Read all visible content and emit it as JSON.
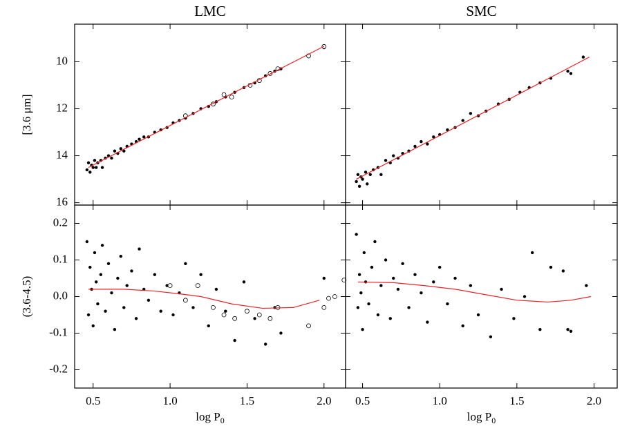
{
  "chart_data": [
    {
      "type": "scatter",
      "title": "LMC",
      "ylabel": "[3.6 μm]",
      "xlim": [
        0.38,
        2.14
      ],
      "ylim": [
        16.1,
        8.4
      ],
      "xticks": [
        0.5,
        1,
        1.5,
        2
      ],
      "xtick_labels": false,
      "yticks": [
        10,
        12,
        14,
        16
      ],
      "ytick_labels": true,
      "series": [
        {
          "marker": "filled",
          "color": "#000000",
          "x": [
            0.46,
            0.47,
            0.48,
            0.49,
            0.5,
            0.51,
            0.52,
            0.53,
            0.55,
            0.56,
            0.58,
            0.6,
            0.62,
            0.64,
            0.66,
            0.68,
            0.7,
            0.72,
            0.75,
            0.78,
            0.8,
            0.83,
            0.86,
            0.9,
            0.94,
            0.98,
            1.02,
            1.06,
            1.1,
            1.15,
            1.2,
            1.25,
            1.3,
            1.36,
            1.42,
            1.48,
            1.55,
            1.62,
            1.68,
            1.72,
            2.0
          ],
          "values": [
            14.6,
            14.3,
            14.7,
            14.4,
            14.5,
            14.2,
            14.5,
            14.3,
            14.2,
            14.5,
            14.1,
            14.0,
            14.1,
            13.8,
            13.9,
            13.7,
            13.8,
            13.6,
            13.5,
            13.4,
            13.3,
            13.2,
            13.2,
            13.0,
            12.9,
            12.8,
            12.6,
            12.5,
            12.4,
            12.2,
            12.0,
            11.9,
            11.7,
            11.5,
            11.3,
            11.1,
            10.9,
            10.6,
            10.4,
            10.3,
            9.4
          ]
        },
        {
          "marker": "open",
          "color": "#000000",
          "x": [
            1.1,
            1.28,
            1.35,
            1.4,
            1.52,
            1.58,
            1.65,
            1.7,
            1.9,
            2.0
          ],
          "values": [
            12.3,
            11.8,
            11.4,
            11.5,
            11.0,
            10.8,
            10.5,
            10.3,
            9.75,
            9.35
          ]
        },
        {
          "marker": "line",
          "color": "#e8232a",
          "x": [
            0.47,
            2.0
          ],
          "values": [
            14.5,
            9.34
          ]
        }
      ]
    },
    {
      "type": "scatter",
      "title": "SMC",
      "xlim": [
        0.39,
        2.15
      ],
      "ylim": [
        16.1,
        8.4
      ],
      "xticks": [
        0.5,
        1,
        1.5,
        2
      ],
      "xtick_labels": false,
      "yticks": [
        10,
        12,
        14,
        16
      ],
      "ytick_labels": false,
      "series": [
        {
          "marker": "filled",
          "color": "#000000",
          "x": [
            0.46,
            0.47,
            0.48,
            0.49,
            0.5,
            0.52,
            0.53,
            0.55,
            0.57,
            0.6,
            0.62,
            0.65,
            0.68,
            0.7,
            0.73,
            0.76,
            0.8,
            0.84,
            0.88,
            0.92,
            0.96,
            1.0,
            1.05,
            1.1,
            1.15,
            1.2,
            1.25,
            1.3,
            1.38,
            1.45,
            1.52,
            1.58,
            1.65,
            1.72,
            1.83,
            1.85,
            1.93
          ],
          "values": [
            15.1,
            14.8,
            15.3,
            14.9,
            15.0,
            14.7,
            15.2,
            14.8,
            14.6,
            14.5,
            14.8,
            14.2,
            14.3,
            14.0,
            14.1,
            13.9,
            13.8,
            13.6,
            13.4,
            13.5,
            13.2,
            13.1,
            12.9,
            12.8,
            12.5,
            12.2,
            12.3,
            12.1,
            11.8,
            11.6,
            11.3,
            11.1,
            10.9,
            10.7,
            10.4,
            10.5,
            9.8
          ]
        },
        {
          "marker": "line",
          "color": "#e8232a",
          "x": [
            0.46,
            1.97
          ],
          "values": [
            15.0,
            9.8
          ]
        }
      ]
    },
    {
      "type": "scatter",
      "ylabel": "(3.6-4.5)",
      "xlabel": "log P",
      "xlabel_sub": "0",
      "xlim": [
        0.38,
        2.14
      ],
      "ylim": [
        -0.25,
        0.25
      ],
      "xticks": [
        0.5,
        {
          "value": 1,
          "label": "1.0"
        },
        1.5,
        {
          "value": 2,
          "label": "2.0"
        }
      ],
      "xtick_labels": true,
      "yticks": [
        -0.2,
        -0.1,
        {
          "value": 0,
          "label": "0.0"
        },
        0.1,
        0.2
      ],
      "ytick_labels": true,
      "series": [
        {
          "marker": "filled",
          "color": "#000000",
          "x": [
            0.46,
            0.47,
            0.48,
            0.49,
            0.5,
            0.51,
            0.52,
            0.53,
            0.55,
            0.56,
            0.58,
            0.6,
            0.62,
            0.64,
            0.66,
            0.68,
            0.7,
            0.72,
            0.75,
            0.78,
            0.8,
            0.83,
            0.86,
            0.9,
            0.94,
            0.98,
            1.02,
            1.06,
            1.1,
            1.15,
            1.2,
            1.25,
            1.3,
            1.36,
            1.42,
            1.48,
            1.55,
            1.62,
            1.68,
            1.72,
            2.0
          ],
          "values": [
            0.15,
            -0.05,
            0.08,
            0.02,
            -0.08,
            0.12,
            0.04,
            -0.02,
            0.06,
            0.14,
            -0.04,
            0.09,
            0.01,
            -0.09,
            0.05,
            0.11,
            -0.03,
            0.03,
            0.07,
            -0.06,
            0.13,
            0.02,
            -0.01,
            0.06,
            -0.04,
            0.03,
            -0.05,
            0.01,
            0.09,
            -0.03,
            0.06,
            -0.08,
            0.02,
            -0.04,
            -0.12,
            0.04,
            -0.06,
            -0.13,
            -0.03,
            -0.1,
            0.05
          ]
        },
        {
          "marker": "open",
          "color": "#000000",
          "x": [
            1.0,
            1.1,
            1.18,
            1.28,
            1.35,
            1.42,
            1.5,
            1.58,
            1.65,
            1.7,
            1.9,
            2.0,
            2.03,
            2.07,
            2.13
          ],
          "values": [
            0.03,
            -0.01,
            0.03,
            -0.03,
            -0.05,
            -0.06,
            -0.04,
            -0.05,
            -0.06,
            -0.03,
            -0.08,
            -0.03,
            -0.005,
            0.0,
            0.045
          ]
        },
        {
          "marker": "line",
          "color": "#e8232a",
          "x": [
            0.47,
            0.7,
            0.9,
            1.05,
            1.2,
            1.4,
            1.6,
            1.8,
            1.97
          ],
          "values": [
            0.02,
            0.02,
            0.015,
            0.008,
            0.0,
            -0.02,
            -0.032,
            -0.03,
            -0.01
          ]
        }
      ]
    },
    {
      "type": "scatter",
      "xlabel": "log P",
      "xlabel_sub": "0",
      "xlim": [
        0.39,
        2.15
      ],
      "ylim": [
        -0.25,
        0.25
      ],
      "xticks": [
        0.5,
        {
          "value": 1,
          "label": "1.0"
        },
        1.5,
        {
          "value": 2,
          "label": "2.0"
        }
      ],
      "xtick_labels": true,
      "yticks": [
        -0.2,
        -0.1,
        0,
        0.1,
        0.2
      ],
      "ytick_labels": false,
      "series": [
        {
          "marker": "filled",
          "color": "#000000",
          "x": [
            0.46,
            0.47,
            0.48,
            0.49,
            0.5,
            0.51,
            0.52,
            0.54,
            0.56,
            0.58,
            0.6,
            0.62,
            0.65,
            0.68,
            0.7,
            0.73,
            0.76,
            0.8,
            0.84,
            0.88,
            0.92,
            0.96,
            1.0,
            1.05,
            1.1,
            1.15,
            1.2,
            1.25,
            1.33,
            1.4,
            1.48,
            1.55,
            1.6,
            1.65,
            1.72,
            1.8,
            1.83,
            1.85,
            1.95
          ],
          "values": [
            0.17,
            -0.03,
            0.06,
            0.01,
            -0.09,
            0.12,
            0.04,
            -0.02,
            0.08,
            0.15,
            -0.05,
            0.03,
            0.1,
            -0.06,
            0.05,
            0.02,
            0.09,
            -0.03,
            0.06,
            0.01,
            -0.07,
            0.04,
            0.08,
            -0.02,
            0.05,
            -0.08,
            0.03,
            -0.05,
            -0.11,
            0.02,
            -0.06,
            0.0,
            0.12,
            -0.09,
            0.08,
            0.07,
            -0.09,
            -0.095,
            0.03
          ]
        },
        {
          "marker": "line",
          "color": "#e8232a",
          "x": [
            0.47,
            0.7,
            0.9,
            1.1,
            1.3,
            1.5,
            1.7,
            1.85,
            1.98
          ],
          "values": [
            0.04,
            0.038,
            0.03,
            0.02,
            0.005,
            -0.01,
            -0.015,
            -0.01,
            0.0
          ]
        }
      ]
    }
  ]
}
